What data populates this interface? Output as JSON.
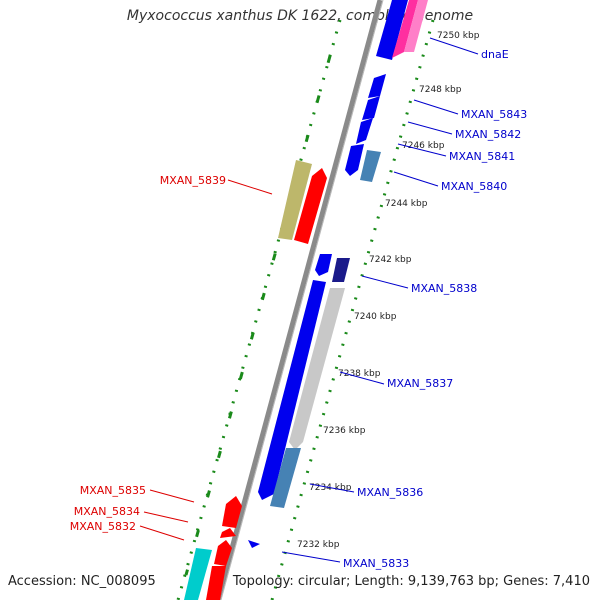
{
  "title": "Myxococcus xanthus DK 1622, complete genome",
  "accession": "Accession: NC_008095",
  "summary": "Topology: circular; Length: 9,139,763 bp; Genes: 7,410",
  "colors": {
    "forward_cds": "#0000ee",
    "reverse_cds": "#ff0000",
    "backbone": "#888888",
    "dots": "#1a8a1a",
    "forward_label": "#0000cc",
    "reverse_label": "#dd0000"
  },
  "tick_labels": [
    "7250 kbp",
    "7248 kbp",
    "7246 kbp",
    "7244 kbp",
    "7242 kbp",
    "7240 kbp",
    "7238 kbp",
    "7236 kbp",
    "7234 kbp",
    "7232 kbp"
  ],
  "forward_gene_labels": [
    "dnaE",
    "MXAN_5843",
    "MXAN_5842",
    "MXAN_5841",
    "MXAN_5840",
    "MXAN_5838",
    "MXAN_5837",
    "MXAN_5836",
    "MXAN_5833"
  ],
  "reverse_gene_labels": [
    "MXAN_5839",
    "MXAN_5835",
    "MXAN_5834",
    "MXAN_5832"
  ]
}
